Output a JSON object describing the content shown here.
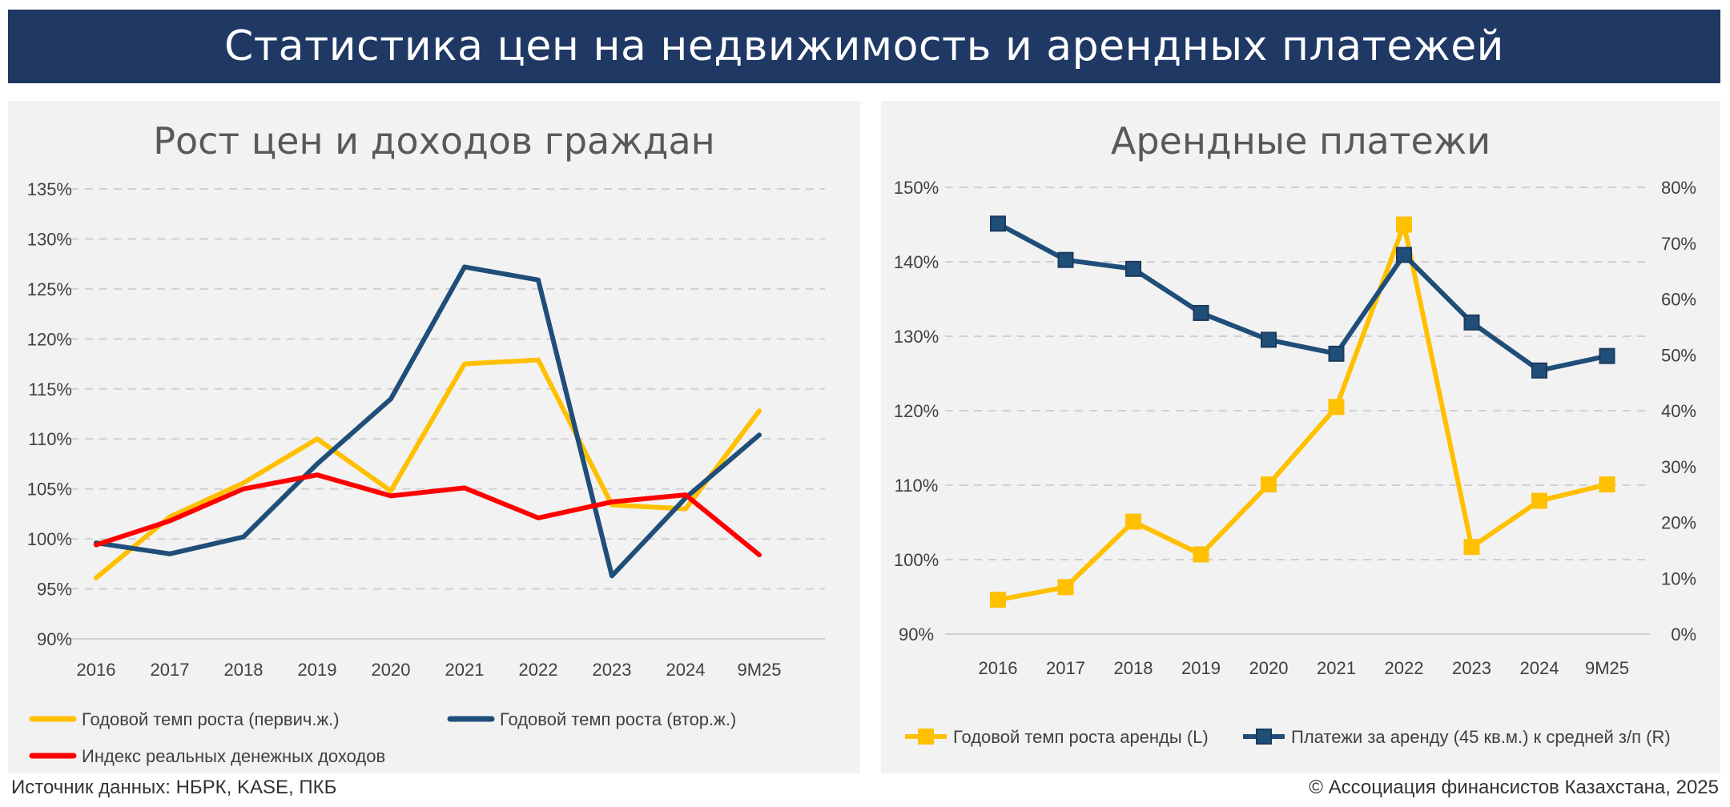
{
  "header": {
    "title": "Статистика цен на недвижимость и арендных платежей"
  },
  "footer": {
    "source": "Источник данных: НБРК, KASE, ПКБ",
    "copyright": "© Ассоциация финансистов Казахстана, 2025"
  },
  "colors": {
    "banner": "#1f3864",
    "yellow": "#ffc000",
    "navy": "#1f4e79",
    "red": "#ff0000",
    "panel_bg": "#f2f2f2"
  },
  "chart_data": [
    {
      "type": "line",
      "title": "Рост цен и доходов граждан",
      "categories": [
        "2016",
        "2017",
        "2018",
        "2019",
        "2020",
        "2021",
        "2022",
        "2023",
        "2024",
        "9M25"
      ],
      "ylim": [
        90,
        135
      ],
      "yticks": [
        "90%",
        "95%",
        "100%",
        "105%",
        "110%",
        "115%",
        "120%",
        "125%",
        "130%",
        "135%"
      ],
      "grid": true,
      "legend_position": "bottom",
      "series": [
        {
          "name": "Годовой темп роста (первич.ж.)",
          "color": "#ffc000",
          "values": [
            96.1,
            102.2,
            105.6,
            110.0,
            104.8,
            117.5,
            117.9,
            103.4,
            103.0,
            112.8
          ]
        },
        {
          "name": "Годовой темп роста (втор.ж.)",
          "color": "#1f4e79",
          "values": [
            99.6,
            98.5,
            100.2,
            107.5,
            114.0,
            127.2,
            125.9,
            96.3,
            104.1,
            110.4
          ]
        },
        {
          "name": "Индекс реальных денежных доходов",
          "color": "#ff0000",
          "values": [
            99.4,
            101.8,
            105.0,
            106.4,
            104.3,
            105.1,
            102.1,
            103.7,
            104.4,
            98.4
          ]
        }
      ]
    },
    {
      "type": "line",
      "title": "Арендные платежи",
      "categories": [
        "2016",
        "2017",
        "2018",
        "2019",
        "2020",
        "2021",
        "2022",
        "2023",
        "2024",
        "9M25"
      ],
      "ylim_left": [
        90,
        150
      ],
      "ylim_right": [
        0,
        80
      ],
      "yticks_left": [
        "90%",
        "100%",
        "110%",
        "120%",
        "130%",
        "140%",
        "150%"
      ],
      "yticks_right": [
        "0%",
        "10%",
        "20%",
        "30%",
        "40%",
        "50%",
        "60%",
        "70%",
        "80%"
      ],
      "grid": true,
      "legend_position": "bottom",
      "series": [
        {
          "name": "Годовой темп роста аренды (L)",
          "color": "#ffc000",
          "axis": "left",
          "values": [
            94.6,
            96.3,
            105.1,
            100.7,
            110.1,
            120.5,
            145.0,
            101.7,
            107.9,
            110.1
          ]
        },
        {
          "name": "Платежи за аренду (45 кв.м.) к средней з/п (R)",
          "color": "#1f4e79",
          "axis": "right",
          "values": [
            73.5,
            67.0,
            65.4,
            57.5,
            52.7,
            50.2,
            67.9,
            55.8,
            47.2,
            49.8
          ]
        }
      ]
    }
  ]
}
